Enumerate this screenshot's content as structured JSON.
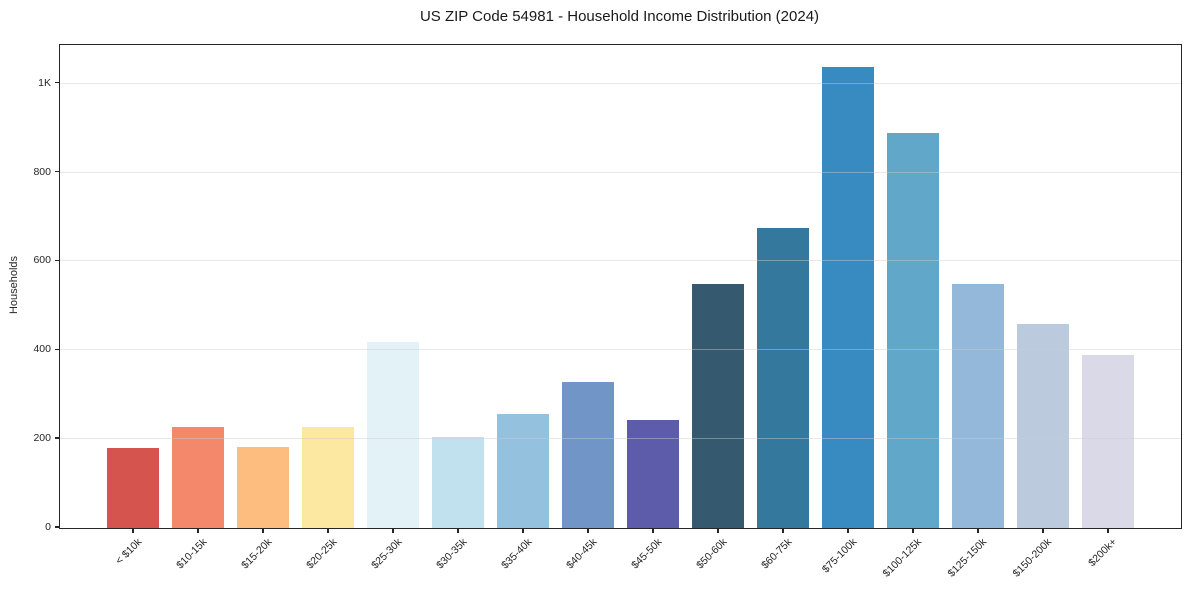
{
  "chart_data": {
    "type": "bar",
    "title": "US ZIP Code 54981 - Household Income Distribution (2024)",
    "xlabel": "",
    "ylabel": "Households",
    "categories": [
      "< $10k",
      "$10-15k",
      "$15-20k",
      "$20-25k",
      "$25-30k",
      "$30-35k",
      "$35-40k",
      "$40-45k",
      "$45-50k",
      "$50-60k",
      "$60-75k",
      "$75-100k",
      "$100-125k",
      "$125-150k",
      "$150-200k",
      "$200k+"
    ],
    "values": [
      180,
      228,
      182,
      227,
      418,
      205,
      256,
      328,
      243,
      550,
      676,
      1038,
      890,
      550,
      460,
      390
    ],
    "bar_colors": [
      "#d6544e",
      "#f3886a",
      "#fcbd7e",
      "#fde8a1",
      "#e2f2f7",
      "#c1e1ee",
      "#94c1de",
      "#7295c7",
      "#5c5caa",
      "#35596e",
      "#35789d",
      "#388bc1",
      "#60a7ca",
      "#94b8da",
      "#bccade",
      "#d9d9e7"
    ],
    "yticks": [
      {
        "value": 0,
        "label": "0"
      },
      {
        "value": 200,
        "label": "200"
      },
      {
        "value": 400,
        "label": "400"
      },
      {
        "value": 600,
        "label": "600"
      },
      {
        "value": 800,
        "label": "800"
      },
      {
        "value": 1000,
        "label": "1K"
      }
    ],
    "ylim": [
      0,
      1087
    ],
    "grid": "horizontal",
    "legend": "none",
    "background_color": "#ffffff",
    "spine_color": "#262626",
    "gridline_color": "#cdcdcd",
    "x_tick_rotation_deg": 45
  }
}
